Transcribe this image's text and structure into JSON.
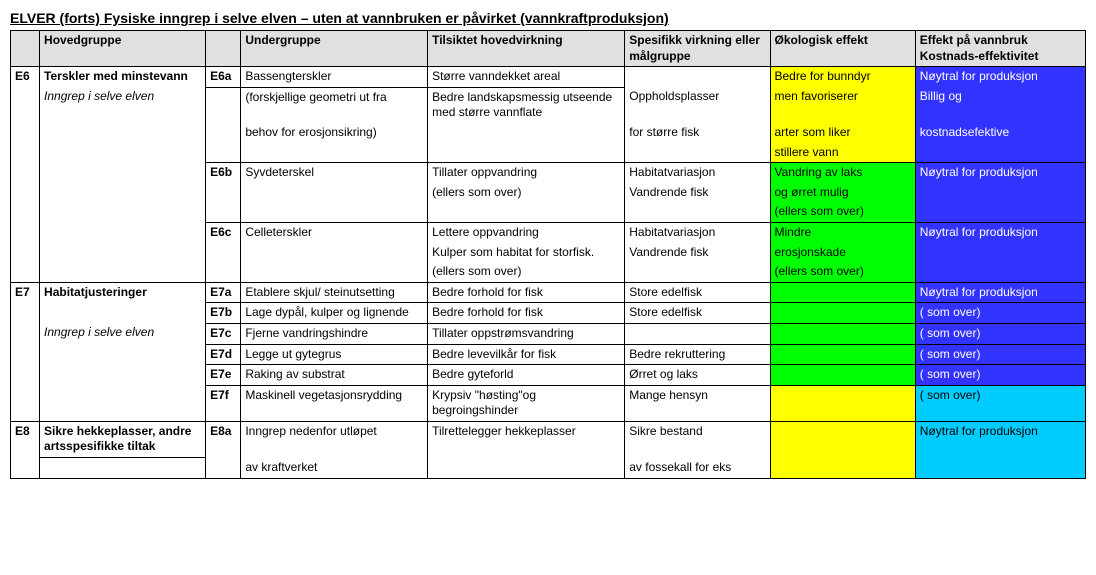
{
  "title": "ELVER (forts) Fysiske inngrep i selve elven – uten at vannbruken er påvirket (vannkraftproduksjon)",
  "colors": {
    "header_bg": "#e0e0e0",
    "yellow": "#ffff00",
    "green": "#00ff00",
    "blue": "#3333ff",
    "cyan": "#00ccff",
    "blue_text": "#ffffff"
  },
  "headers": {
    "h1": "",
    "h2": "Hovedgruppe",
    "h3": "",
    "h4": "Undergruppe",
    "h5": "Tilsiktet hovedvirkning",
    "h6": "Spesifikk virkning eller målgruppe",
    "h7": "Økologisk  effekt",
    "h8": "Effekt på vannbruk Kostnads-effektivitet"
  },
  "rows": [
    {
      "c1": "E6",
      "c1s": "bold nb-bot",
      "c2": " Terskler med minstevann",
      "c2s": "bold nb-bot",
      "c3": "E6a",
      "c3s": "bold",
      "c4": "Bassengterskler",
      "c5": "Større vanndekket areal",
      "c6": "",
      "c6s": "nb-bot",
      "c7": "Bedre for bunndyr",
      "c7bg": "yellow",
      "c7s": "nb-bot",
      "c8": "Nøytral for produksjon",
      "c8bg": "blue",
      "c8s": "nb-bot"
    },
    {
      "c1": "",
      "c1s": "nb",
      "c2": "Inngrep i selve elven",
      "c2s": "italic nb",
      "c3": "",
      "c3s": "nb-bot",
      "c4": "(forskjellige geometri ut fra",
      "c4s": "nb-bot",
      "c5": "Bedre landskapsmessig utseende med større vannflate",
      "c5s": "nb-bot",
      "c6": "Oppholdsplasser",
      "c6s": "nb",
      "c7": "men favoriserer",
      "c7bg": "yellow",
      "c7s": "nb",
      "c8": "Billig og",
      "c8bg": "blue",
      "c8s": "nb"
    },
    {
      "c1": "",
      "c1s": "nb",
      "c2": "",
      "c2s": "nb",
      "c3": "",
      "c3s": "nb",
      "c4": "behov for erosjonsikring)",
      "c4s": "nb",
      "c5": "",
      "c5s": "nb",
      "c6": "for større fisk",
      "c6s": "nb",
      "c7": "arter som liker",
      "c7bg": "yellow",
      "c7s": "nb",
      "c8": "kostnadsefektive",
      "c8bg": "blue",
      "c8s": "nb"
    },
    {
      "c1": "",
      "c1s": "nb",
      "c2": "",
      "c2s": "nb",
      "c3": "",
      "c3s": "nb-top",
      "c4": "",
      "c4s": "nb-top",
      "c5": "",
      "c5s": "nb-top",
      "c6": "",
      "c6s": "nb-top",
      "c7": "stillere vann",
      "c7bg": "yellow",
      "c7s": "nb-top",
      "c8": "",
      "c8bg": "blue",
      "c8s": "nb-top"
    },
    {
      "c1": "",
      "c1s": "nb",
      "c2": "",
      "c2s": "nb",
      "c3": "E6b",
      "c3s": "bold nb-bot",
      "c4": "Syvdeterskel",
      "c4s": "nb-bot",
      "c5": "Tillater oppvandring",
      "c5s": "nb-bot",
      "c6": "Habitatvariasjon",
      "c6s": "nb-bot",
      "c7": "Vandring av laks",
      "c7bg": "green",
      "c7s": "nb-bot",
      "c8": "Nøytral for produksjon",
      "c8bg": "blue",
      "c8s": "nb-bot"
    },
    {
      "c1": "",
      "c1s": "nb",
      "c2": "",
      "c2s": "nb",
      "c3": "",
      "c3s": "nb",
      "c4": "",
      "c4s": "nb",
      "c5": "(ellers som over)",
      "c5s": "nb",
      "c6": " Vandrende fisk",
      "c6s": "nb",
      "c7": "og ørret mulig",
      "c7bg": "green",
      "c7s": "nb",
      "c8": "",
      "c8bg": "blue",
      "c8s": "nb"
    },
    {
      "c1": "",
      "c1s": "nb",
      "c2": "",
      "c2s": "nb",
      "c3": "",
      "c3s": "nb-top",
      "c4": "",
      "c4s": "nb-top",
      "c5": "",
      "c5s": "nb-top",
      "c6": "",
      "c6s": "nb-top",
      "c7": "(ellers som over)",
      "c7bg": "green",
      "c7s": "nb-top",
      "c8": "",
      "c8bg": "blue",
      "c8s": "nb-top"
    },
    {
      "c1": "",
      "c1s": "nb",
      "c2": "",
      "c2s": "nb",
      "c3": "E6c",
      "c3s": "bold nb-bot",
      "c4": "Celleterskler",
      "c4s": "nb-bot",
      "c5": "Lettere oppvandring",
      "c5s": "nb-bot",
      "c6": "Habitatvariasjon",
      "c6s": "nb-bot",
      "c7": "Mindre",
      "c7bg": "green",
      "c7s": "nb-bot",
      "c8": "Nøytral for produksjon",
      "c8bg": "blue",
      "c8s": "nb-bot"
    },
    {
      "c1": "",
      "c1s": "nb",
      "c2": "",
      "c2s": "nb",
      "c3": "",
      "c3s": "nb",
      "c4": "",
      "c4s": "nb",
      "c5": "Kulper som habitat for storfisk.",
      "c5s": "nb",
      "c6": " Vandrende fisk",
      "c6s": "nb",
      "c7": "erosjonskade",
      "c7bg": "green",
      "c7s": "nb",
      "c8": "",
      "c8bg": "blue",
      "c8s": "nb"
    },
    {
      "c1": "",
      "c1s": "nb-top",
      "c2": "",
      "c2s": "nb-top",
      "c3": "",
      "c3s": "nb-top",
      "c4": "",
      "c4s": "nb-top",
      "c5": "(ellers som over)",
      "c5s": "nb-top",
      "c6": "",
      "c6s": "nb-top",
      "c7": "(ellers som over)",
      "c7bg": "green",
      "c7s": "nb-top",
      "c8": "",
      "c8bg": "blue",
      "c8s": "nb-top"
    },
    {
      "c1": "E7",
      "c1s": "bold nb-bot",
      "c2": "Habitatjusteringer",
      "c2s": "bold nb-bot",
      "c3": "E7a",
      "c3s": "bold",
      "c4": "Etablere skjul/ steinutsetting",
      "c5": "Bedre forhold for fisk",
      "c6": "Store edelfisk",
      "c7": "",
      "c7bg": "green",
      "c8": "Nøytral for produksjon",
      "c8bg": "blue"
    },
    {
      "c1": "",
      "c1s": "nb",
      "c2": "",
      "c2s": "nb",
      "c3": "E7b",
      "c3s": "bold nb-bot",
      "c4": "Lage dypål, kulper og lignende",
      "c4s": "",
      "c5": "Bedre forhold for fisk",
      "c5s": "",
      "c6": "Store edelfisk",
      "c6s": "",
      "c7": "",
      "c7bg": "green",
      "c8": "( som over)",
      "c8bg": "blue"
    },
    {
      "c1": "",
      "c1s": "nb",
      "c2": "Inngrep i selve elven",
      "c2s": "italic nb",
      "c3": "E7c",
      "c3s": "bold",
      "c4": "Fjerne vandringshindre",
      "c5": "Tillater oppstrømsvandring",
      "c6": "",
      "c7": "",
      "c7bg": "green",
      "c8": " ( som over)",
      "c8bg": "blue"
    },
    {
      "c1": "",
      "c1s": "nb",
      "c2": "",
      "c2s": "nb",
      "c3": "E7d",
      "c3s": "bold",
      "c4": "Legge ut gytegrus",
      "c5": "Bedre levevilkår for fisk",
      "c6": "Bedre rekruttering",
      "c7": "",
      "c7bg": "green",
      "c8": " ( som over)",
      "c8bg": "blue"
    },
    {
      "c1": "",
      "c1s": "nb",
      "c2": "",
      "c2s": "nb",
      "c3": "E7e",
      "c3s": "bold",
      "c4": "Raking av substrat",
      "c5": " Bedre gyteforld",
      "c6": "Ørret og laks",
      "c7": "",
      "c7bg": "green",
      "c8": " ( som over)",
      "c8bg": "blue"
    },
    {
      "c1": "",
      "c1s": "nb-top",
      "c2": "",
      "c2s": "nb-top",
      "c3": "E7f",
      "c3s": "bold",
      "c4": "Maskinell vegetasjonsrydding",
      "c5": "Krypsiv \"høsting\"og begroingshinder",
      "c6": " Mange hensyn",
      "c7": "",
      "c7bg": "yellow",
      "c8": "( som over)",
      "c8bg": "cyan"
    },
    {
      "c1": "E8",
      "c1s": "bold nb-bot",
      "c2": "Sikre hekkeplasser, andre artsspesifikke tiltak",
      "c2s": "bold",
      "c3": "E8a",
      "c3s": "bold nb-bot",
      "c4": "Inngrep  nedenfor utløpet",
      "c4s": "nb-bot",
      "c5": "Tilrettelegger hekkeplasser",
      "c5s": "nb-bot",
      "c6": " Sikre bestand",
      "c6s": "nb-bot",
      "c7": "",
      "c7bg": "yellow",
      "c7s": "nb-bot",
      "c8": "Nøytral for produksjon",
      "c8bg": "cyan",
      "c8s": "nb-bot"
    },
    {
      "c1": "",
      "c1s": "nb-top",
      "c2": "",
      "c2s": "nb-top",
      "c3": "",
      "c3s": "nb-top",
      "c4": " av kraftverket",
      "c4s": "nb-top",
      "c5": "",
      "c5s": "nb-top",
      "c6": " av fossekall for eks",
      "c6s": "nb-top",
      "c7": "",
      "c7bg": "yellow",
      "c7s": "nb-top",
      "c8": "",
      "c8bg": "cyan",
      "c8s": "nb-top"
    }
  ]
}
